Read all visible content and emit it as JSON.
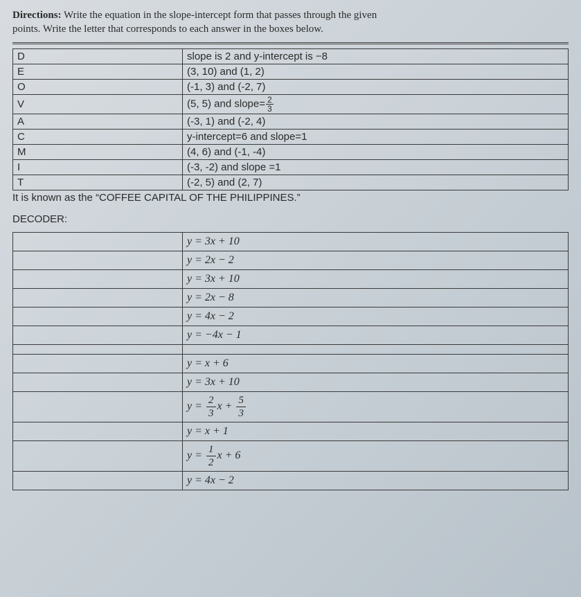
{
  "directions": {
    "label": "Directions:",
    "text_part1": " Write the equation in the slope-intercept form that passes through the given",
    "text_part2": "points. Write the letter that corresponds to each answer in the boxes below."
  },
  "clue_table": {
    "rows": [
      {
        "letter": "D",
        "desc_plain": "slope is 2 and y-intercept is −8"
      },
      {
        "letter": "E",
        "desc_plain": "(3, 10) and (1, 2)"
      },
      {
        "letter": "O",
        "desc_plain": "(-1, 3) and (-2, 7)"
      },
      {
        "letter": "V",
        "desc_prefix": "(5, 5) and slope=",
        "frac_num": "2",
        "frac_den": "3"
      },
      {
        "letter": "A",
        "desc_plain": "(-3, 1) and (-2, 4)"
      },
      {
        "letter": "C",
        "desc_plain": "y-intercept=6 and slope=1"
      },
      {
        "letter": "M",
        "desc_plain": "(4, 6) and (-1, -4)"
      },
      {
        "letter": "I",
        "desc_plain": "(-3, -2) and slope =1"
      },
      {
        "letter": "T",
        "desc_plain": "(-2, 5) and (2, 7)"
      }
    ]
  },
  "sentence": {
    "prefix": "It is known as the ",
    "quoted": "“COFFEE CAPITAL OF THE PHILIPPINES.”"
  },
  "decoder_label": "DECODER:",
  "decoder_table": {
    "rows": [
      {
        "eq_plain": "y = 3x + 10"
      },
      {
        "eq_plain": "y = 2x − 2"
      },
      {
        "eq_plain": "y = 3x + 10"
      },
      {
        "eq_plain": "y = 2x − 8"
      },
      {
        "eq_plain": "y = 4x − 2"
      },
      {
        "eq_plain": "y = −4x − 1"
      },
      {
        "spacer": true
      },
      {
        "eq_plain": "y = x + 6"
      },
      {
        "eq_plain": "y = 3x + 10"
      },
      {
        "eq_frac": true,
        "pre": "y = ",
        "n1": "2",
        "d1": "3",
        "mid": "x + ",
        "n2": "5",
        "d2": "3",
        "tall": true
      },
      {
        "eq_plain": "y = x + 1"
      },
      {
        "eq_frac_single": true,
        "pre": "y = ",
        "n1": "1",
        "d1": "2",
        "post": "x + 6",
        "tall": true
      },
      {
        "eq_plain": "y = 4x − 2"
      }
    ]
  },
  "colors": {
    "text": "#2a2a2a",
    "border": "#3a3a3a",
    "bg_light": "#d8dce0",
    "bg_dark": "#b8c2ca"
  }
}
